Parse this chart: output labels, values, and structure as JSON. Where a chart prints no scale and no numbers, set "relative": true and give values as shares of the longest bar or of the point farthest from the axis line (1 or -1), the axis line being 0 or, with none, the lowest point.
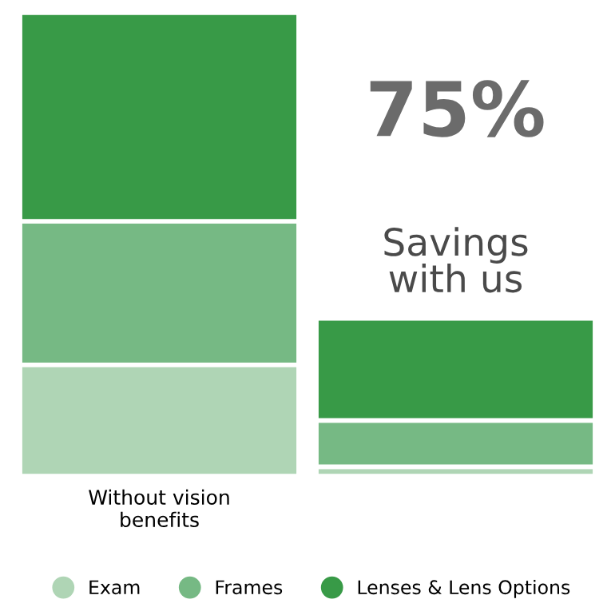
{
  "chart_data": {
    "type": "bar",
    "stacked": true,
    "relative": true,
    "categories": [
      "Without vision benefits",
      null
    ],
    "series": [
      {
        "name": "Exam",
        "color": "#afd5b5",
        "values": [
          0.24,
          0.02
        ]
      },
      {
        "name": "Frames",
        "color": "#76b984",
        "values": [
          0.31,
          0.1
        ]
      },
      {
        "name": "Lenses & Lens Options",
        "color": "#389a47",
        "values": [
          0.45,
          0.22
        ]
      }
    ],
    "annotations": [
      "75%",
      "Savings with us"
    ],
    "legend": "bottom",
    "grid": false
  }
}
